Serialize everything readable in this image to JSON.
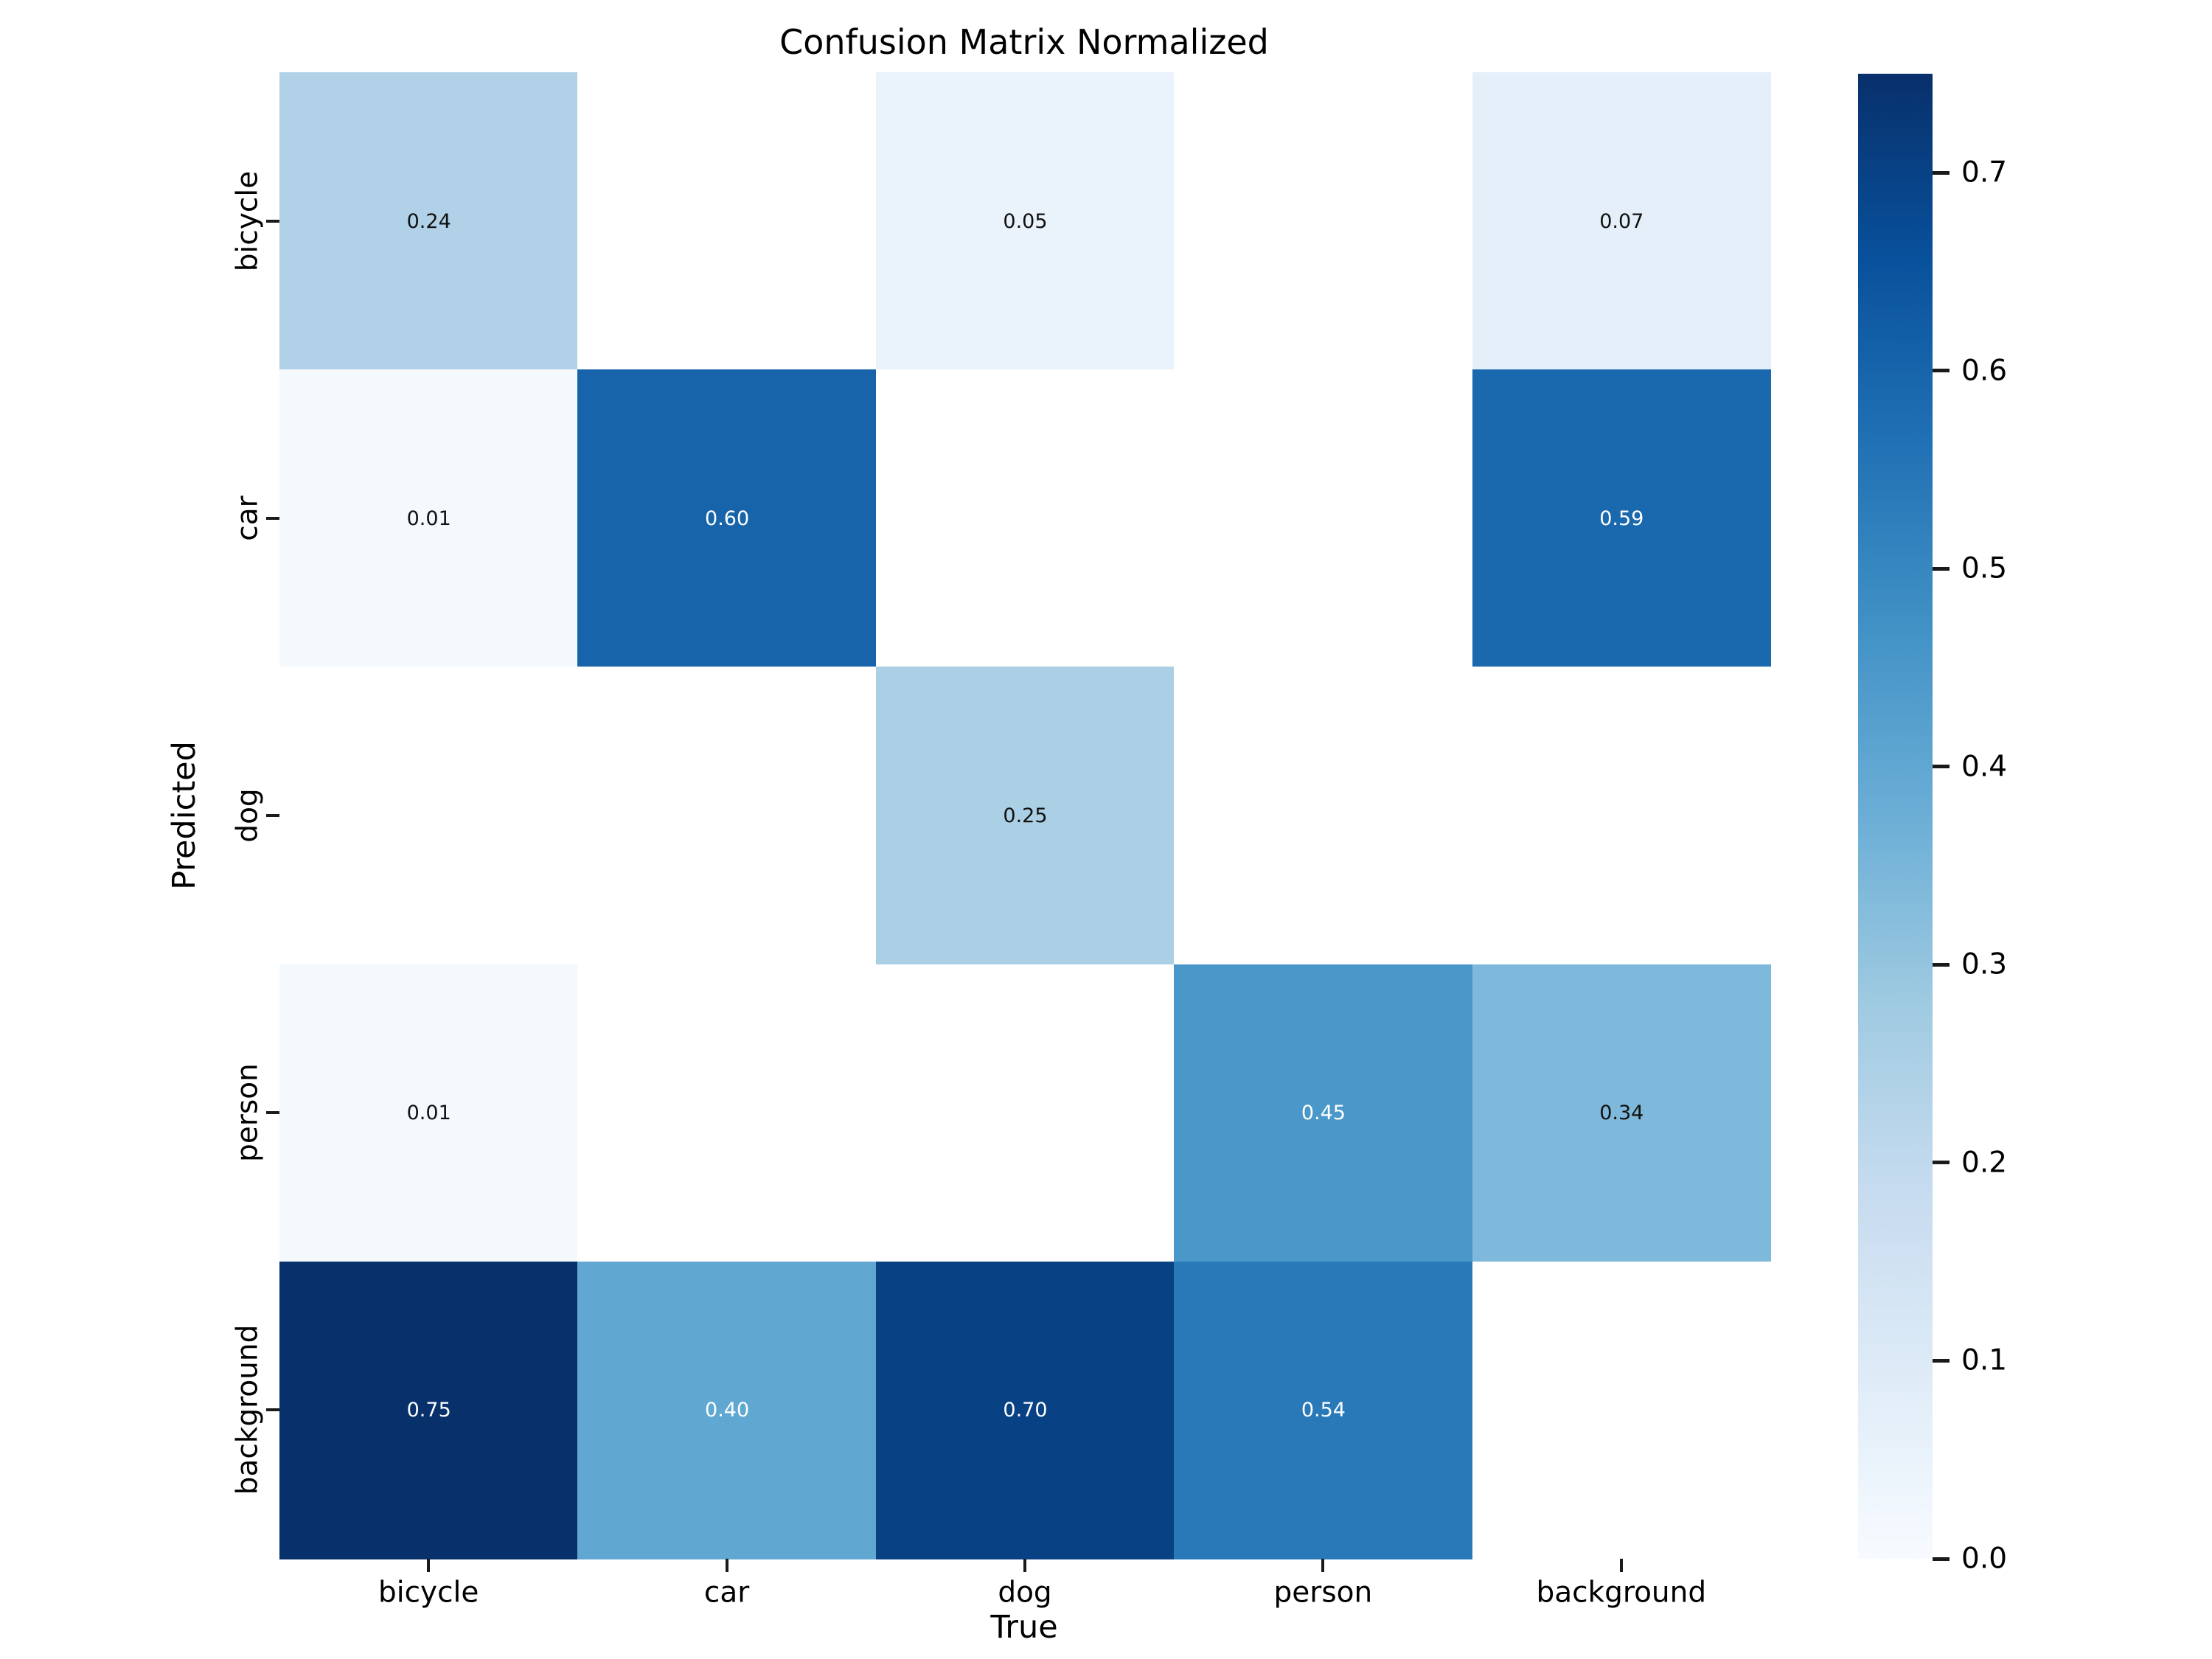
{
  "title": "Confusion Matrix Normalized",
  "chart_data": {
    "type": "heatmap",
    "title": "Confusion Matrix Normalized",
    "xlabel": "True",
    "ylabel": "Predicted",
    "x_categories": [
      "bicycle",
      "car",
      "dog",
      "person",
      "background"
    ],
    "y_categories": [
      "bicycle",
      "car",
      "dog",
      "person",
      "background"
    ],
    "matrix": [
      [
        0.24,
        null,
        0.05,
        null,
        0.07
      ],
      [
        0.01,
        0.6,
        null,
        null,
        0.59
      ],
      [
        null,
        null,
        0.25,
        null,
        null
      ],
      [
        0.01,
        null,
        null,
        0.45,
        0.34
      ],
      [
        0.75,
        0.4,
        0.7,
        0.54,
        null
      ]
    ],
    "value_decimals": 2,
    "empty_cell_color": "#ffffff",
    "annotation_text_dark": "#111111",
    "annotation_text_light": "#ffffff",
    "colormap": {
      "name": "Blues",
      "vmin": 0.0,
      "vmax": 0.75,
      "anchors": [
        {
          "t": 0.0,
          "hex": "#f7fbff"
        },
        {
          "t": 0.125,
          "hex": "#deebf7"
        },
        {
          "t": 0.25,
          "hex": "#c6dbef"
        },
        {
          "t": 0.375,
          "hex": "#9ecae1"
        },
        {
          "t": 0.5,
          "hex": "#6baed6"
        },
        {
          "t": 0.625,
          "hex": "#4292c6"
        },
        {
          "t": 0.75,
          "hex": "#2171b5"
        },
        {
          "t": 0.875,
          "hex": "#08519c"
        },
        {
          "t": 1.0,
          "hex": "#08306b"
        }
      ]
    },
    "colorbar": {
      "position": "right",
      "ticks": [
        {
          "value": 0.7,
          "label": "0.7"
        },
        {
          "value": 0.6,
          "label": "0.6"
        },
        {
          "value": 0.5,
          "label": "0.5"
        },
        {
          "value": 0.4,
          "label": "0.4"
        },
        {
          "value": 0.3,
          "label": "0.3"
        },
        {
          "value": 0.2,
          "label": "0.2"
        },
        {
          "value": 0.1,
          "label": "0.1"
        },
        {
          "value": 0.0,
          "label": "0.0"
        }
      ]
    },
    "grid": false,
    "legend_position": "none"
  }
}
